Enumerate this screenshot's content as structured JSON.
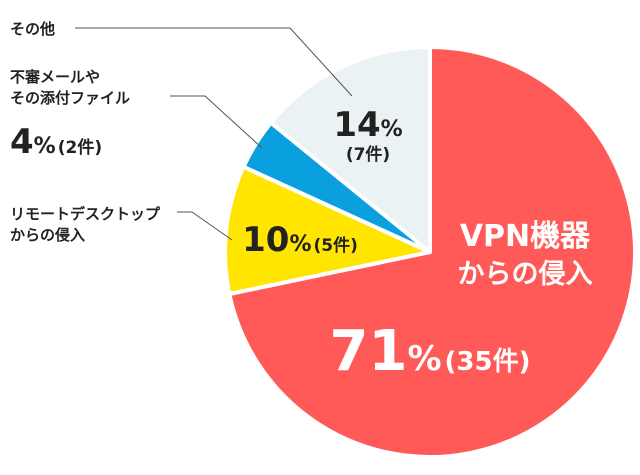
{
  "chart_data": {
    "type": "pie",
    "slices": [
      {
        "id": "vpn",
        "name_lines": [
          "VPN機器",
          "からの侵入"
        ],
        "percent": 71,
        "pct_text": "71",
        "count_text": "(35件)",
        "color": "#ff5a57"
      },
      {
        "id": "remote",
        "name_lines": [
          "リモートデスクトップ",
          "からの侵入"
        ],
        "percent": 10,
        "pct_text": "10",
        "count_text": "(5件)",
        "color": "#ffe500"
      },
      {
        "id": "email",
        "name_lines": [
          "不審メールや",
          "その添付ファイル"
        ],
        "percent": 4,
        "pct_text": "4",
        "count_text": "(2件)",
        "color": "#0aa0e0"
      },
      {
        "id": "other",
        "name_lines": [
          "その他"
        ],
        "percent": 14,
        "pct_text": "14",
        "count_text": "(7件)",
        "color": "#eaf2f3"
      }
    ],
    "percent_symbol": "%",
    "leader_color": "#555555",
    "start_angle": "12 o'clock",
    "direction": "clockwise",
    "title": ""
  }
}
